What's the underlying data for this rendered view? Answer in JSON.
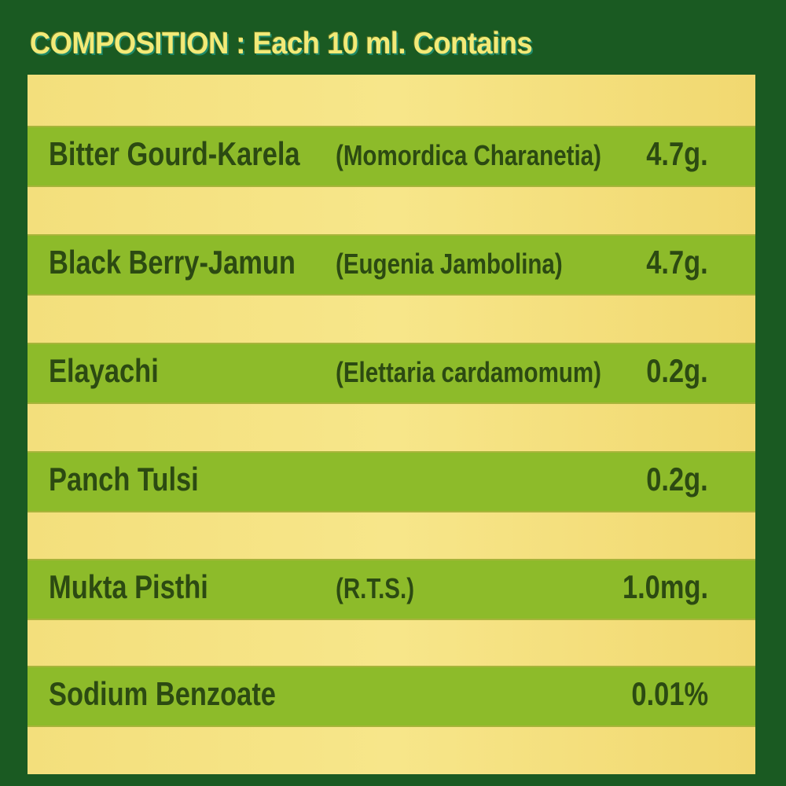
{
  "title": "COMPOSITION : Each 10 ml. Contains",
  "colors": {
    "background": "#1a5a22",
    "yellow_band": "#f5e282",
    "green_band": "#8dbb2a",
    "text": "#2c4a12",
    "title": "#f2ea78"
  },
  "ingredients": [
    {
      "name": "Bitter Gourd-Karela",
      "botanical": "(Momordica Charanetia)",
      "quantity": "4.7g."
    },
    {
      "name": "Black Berry-Jamun",
      "botanical": "(Eugenia Jambolina)",
      "quantity": "4.7g."
    },
    {
      "name": "Elayachi",
      "botanical": "(Elettaria cardamomum)",
      "quantity": "0.2g."
    },
    {
      "name": "Panch Tulsi",
      "botanical": "",
      "quantity": "0.2g."
    },
    {
      "name": "Mukta Pisthi",
      "botanical": "(R.T.S.)",
      "quantity": "1.0mg."
    },
    {
      "name": "Sodium Benzoate",
      "botanical": "",
      "quantity": "0.01%"
    }
  ]
}
